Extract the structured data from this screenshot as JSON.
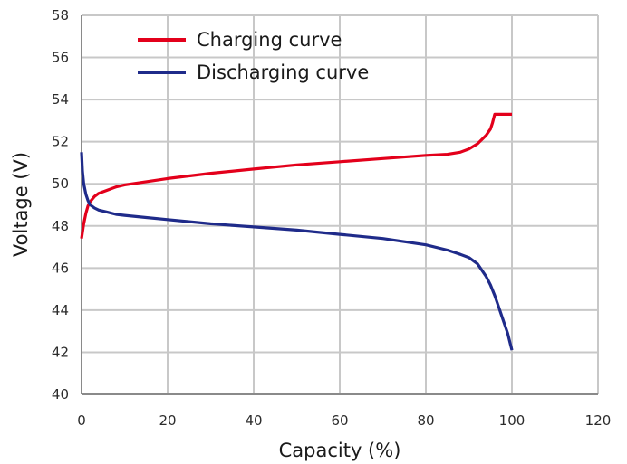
{
  "chart_data": {
    "type": "line",
    "xlabel": "Capacity (%)",
    "ylabel": "Voltage (V)",
    "xlim": [
      0,
      120
    ],
    "ylim": [
      40,
      58
    ],
    "xticks": [
      "0",
      "20",
      "40",
      "60",
      "80",
      "100",
      "120"
    ],
    "yticks": [
      "40",
      "42",
      "44",
      "46",
      "48",
      "50",
      "52",
      "54",
      "56",
      "58"
    ],
    "grid": true,
    "legend": "top-left",
    "series": [
      {
        "name": "Charging curve",
        "color": "#e3001b",
        "x": [
          0,
          0.5,
          1,
          1.5,
          2,
          3,
          4,
          6,
          8,
          10,
          15,
          20,
          30,
          40,
          50,
          60,
          70,
          80,
          85,
          88,
          90,
          92,
          94,
          95,
          95.5,
          96,
          96.5,
          97,
          98,
          99,
          100
        ],
        "y": [
          47.4,
          48.1,
          48.6,
          48.95,
          49.15,
          49.4,
          49.55,
          49.7,
          49.85,
          49.95,
          50.1,
          50.25,
          50.5,
          50.7,
          50.9,
          51.05,
          51.2,
          51.35,
          51.4,
          51.5,
          51.65,
          51.9,
          52.3,
          52.6,
          52.9,
          53.3,
          53.3,
          53.3,
          53.3,
          53.3,
          53.3
        ]
      },
      {
        "name": "Discharging curve",
        "color": "#1f2b8a",
        "x": [
          0,
          0.2,
          0.5,
          1,
          1.5,
          2,
          3,
          4,
          6,
          8,
          10,
          15,
          20,
          30,
          40,
          50,
          60,
          70,
          80,
          85,
          88,
          90,
          92,
          94,
          95,
          96,
          97,
          98,
          99,
          99.5,
          100
        ],
        "y": [
          51.5,
          50.6,
          50.0,
          49.5,
          49.2,
          49.0,
          48.85,
          48.75,
          48.65,
          48.55,
          48.5,
          48.4,
          48.3,
          48.1,
          47.95,
          47.8,
          47.6,
          47.4,
          47.1,
          46.85,
          46.65,
          46.5,
          46.2,
          45.6,
          45.2,
          44.7,
          44.1,
          43.5,
          42.9,
          42.5,
          42.1
        ]
      }
    ]
  }
}
